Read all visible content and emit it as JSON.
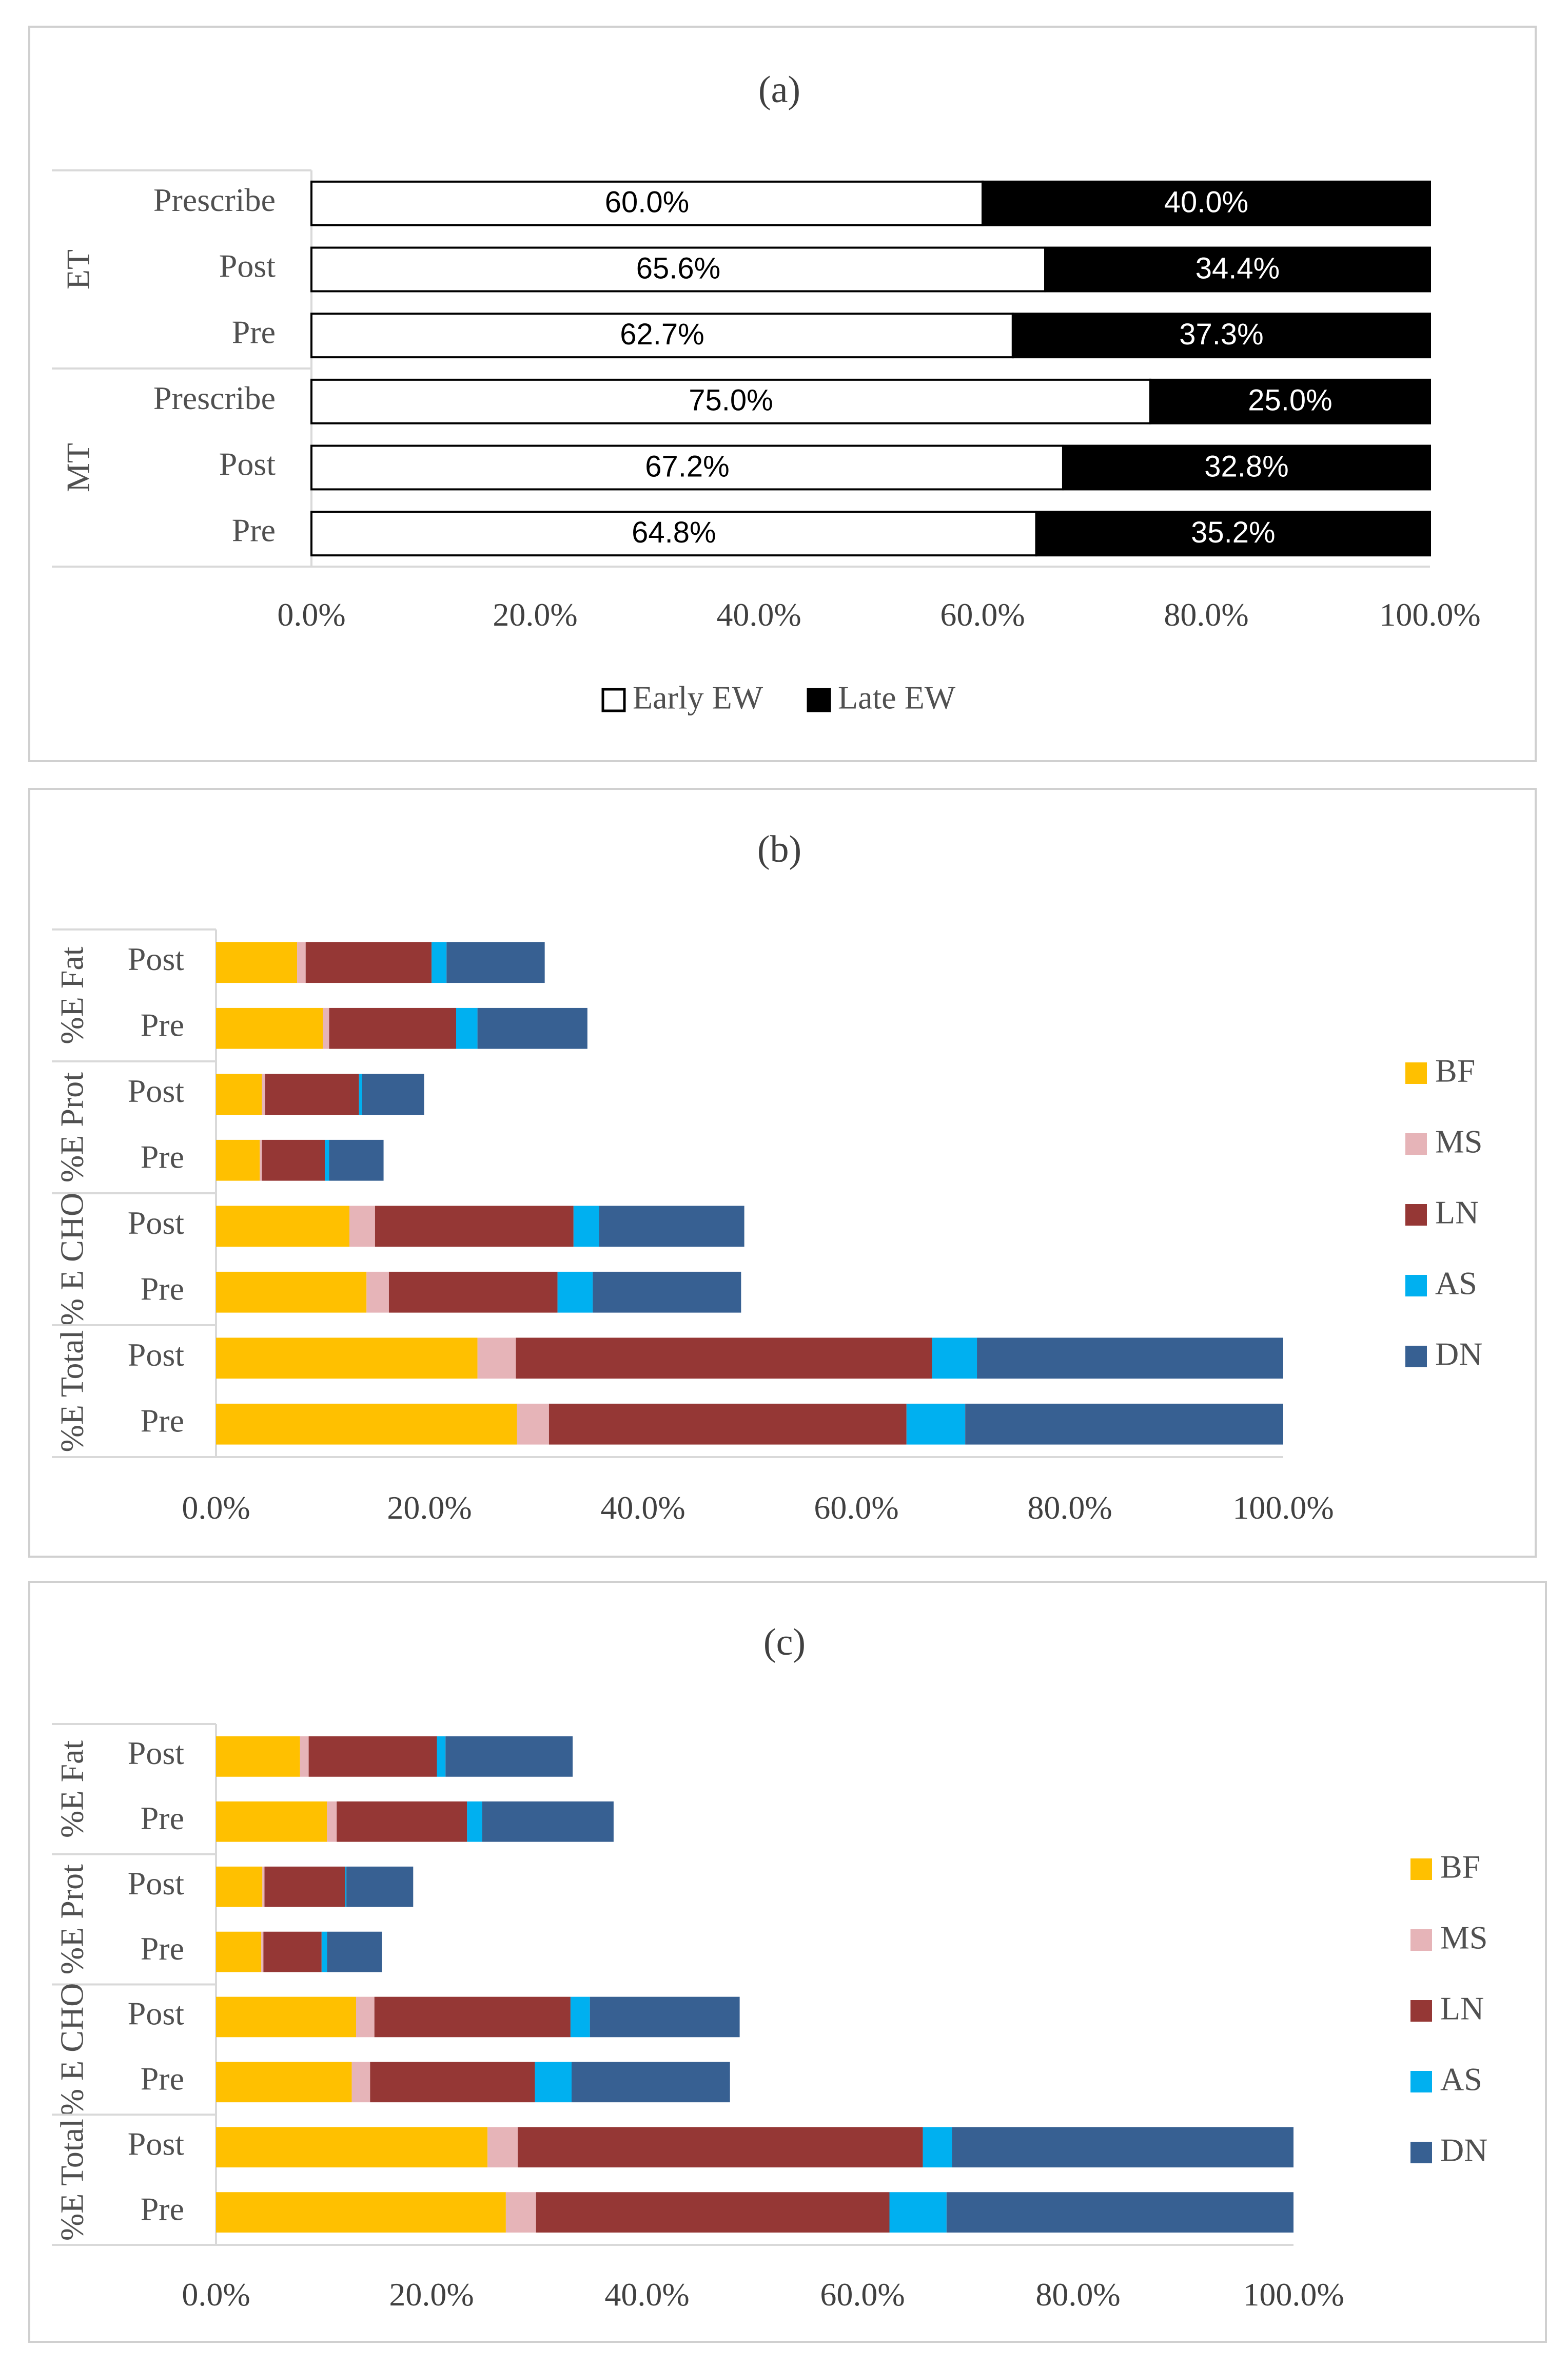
{
  "colors": {
    "BF": "#FFC000",
    "MS": "#E6B4B8",
    "LN": "#953735",
    "AS": "#00B0F0",
    "DN": "#376092",
    "early": "#FFFFFF",
    "late": "#000000",
    "axis": "#d9d9d9"
  },
  "chart_data": [
    {
      "type": "bar",
      "orientation": "horizontal",
      "stacked": "percent",
      "title": "(a)",
      "groups": [
        {
          "name": "ET",
          "categories": [
            "Prescribe",
            "Post",
            "Pre"
          ]
        },
        {
          "name": "MT",
          "categories": [
            "Prescribe",
            "Post",
            "Pre"
          ]
        }
      ],
      "series": [
        {
          "name": "Early EW",
          "values": [
            60.0,
            65.6,
            62.7,
            75.0,
            67.2,
            64.8
          ],
          "labels": [
            "60.0%",
            "65.6%",
            "62.7%",
            "75.0%",
            "67.2%",
            "64.8%"
          ]
        },
        {
          "name": "Late EW",
          "values": [
            40.0,
            34.4,
            37.3,
            25.0,
            32.8,
            35.2
          ],
          "labels": [
            "40.0%",
            "34.4%",
            "37.3%",
            "25.0%",
            "32.8%",
            "35.2%"
          ]
        }
      ],
      "xlim": [
        0,
        100
      ],
      "xticks": [
        "0.0%",
        "20.0%",
        "40.0%",
        "60.0%",
        "80.0%",
        "100.0%"
      ],
      "legend": "bottom"
    },
    {
      "type": "bar",
      "orientation": "horizontal",
      "stacked": true,
      "title": "(b)",
      "groups": [
        {
          "name": "%E Fat",
          "categories": [
            "Post",
            "Pre"
          ]
        },
        {
          "name": "%E Prot",
          "categories": [
            "Post",
            "Pre"
          ]
        },
        {
          "name": "% E CHO",
          "categories": [
            "Post",
            "Pre"
          ]
        },
        {
          "name": "%E Total",
          "categories": [
            "Post",
            "Pre"
          ]
        }
      ],
      "series": [
        {
          "name": "BF",
          "values": [
            7.6,
            10.0,
            4.3,
            4.1,
            12.5,
            14.1,
            24.5,
            28.2
          ]
        },
        {
          "name": "MS",
          "values": [
            0.8,
            0.6,
            0.3,
            0.2,
            2.4,
            2.1,
            3.6,
            3.0
          ]
        },
        {
          "name": "LN",
          "values": [
            11.8,
            11.9,
            8.8,
            5.9,
            18.6,
            15.8,
            39.0,
            33.5
          ]
        },
        {
          "name": "AS",
          "values": [
            1.4,
            2.0,
            0.3,
            0.4,
            2.4,
            3.3,
            4.2,
            5.5
          ]
        },
        {
          "name": "DN",
          "values": [
            9.2,
            10.3,
            5.8,
            5.1,
            13.6,
            13.9,
            28.7,
            29.8
          ]
        }
      ],
      "xlim": [
        0,
        100
      ],
      "xticks": [
        "0.0%",
        "20.0%",
        "40.0%",
        "60.0%",
        "80.0%",
        "100.0%"
      ],
      "legend": "right"
    },
    {
      "type": "bar",
      "orientation": "horizontal",
      "stacked": true,
      "title": "(c)",
      "groups": [
        {
          "name": "%E Fat",
          "categories": [
            "Post",
            "Pre"
          ]
        },
        {
          "name": "%E Prot",
          "categories": [
            "Post",
            "Pre"
          ]
        },
        {
          "name": "% E CHO",
          "categories": [
            "Post",
            "Pre"
          ]
        },
        {
          "name": "%E Total",
          "categories": [
            "Post",
            "Pre"
          ]
        }
      ],
      "series": [
        {
          "name": "BF",
          "values": [
            7.8,
            10.3,
            4.3,
            4.2,
            13.0,
            12.6,
            25.2,
            26.9
          ]
        },
        {
          "name": "MS",
          "values": [
            0.8,
            0.9,
            0.2,
            0.2,
            1.7,
            1.7,
            2.8,
            2.8
          ]
        },
        {
          "name": "LN",
          "values": [
            11.9,
            12.1,
            7.5,
            5.4,
            18.2,
            15.3,
            37.6,
            32.8
          ]
        },
        {
          "name": "AS",
          "values": [
            0.8,
            1.4,
            0.1,
            0.5,
            1.8,
            3.4,
            2.7,
            5.3
          ]
        },
        {
          "name": "DN",
          "values": [
            11.8,
            12.2,
            6.2,
            5.1,
            13.9,
            14.7,
            31.7,
            32.2
          ]
        }
      ],
      "xlim": [
        0,
        100
      ],
      "xticks": [
        "0.0%",
        "20.0%",
        "40.0%",
        "60.0%",
        "80.0%",
        "100.0%"
      ],
      "legend": "right"
    }
  ]
}
